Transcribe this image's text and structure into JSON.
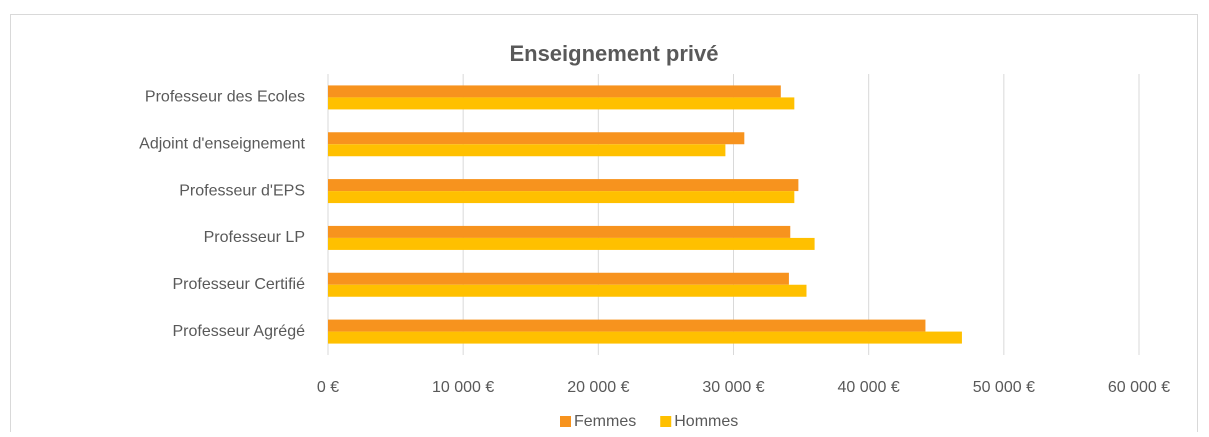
{
  "chart_data": {
    "type": "hbar",
    "title": "Enseignement privé",
    "categories": [
      "Professeur des Ecoles",
      "Adjoint d'enseignement",
      "Professeur d'EPS",
      "Professeur LP",
      "Professeur Certifié",
      "Professeur Agrégé"
    ],
    "series": [
      {
        "name": "Femmes",
        "color": "#f7931e",
        "values": [
          33500,
          30800,
          34800,
          34200,
          34100,
          44200
        ]
      },
      {
        "name": "Hommes",
        "color": "#ffc000",
        "values": [
          34500,
          29400,
          34500,
          36000,
          35400,
          46900
        ]
      }
    ],
    "xlim": [
      0,
      60000
    ],
    "xticks": [
      {
        "value": 0,
        "label": "0 €"
      },
      {
        "value": 10000,
        "label": "10 000 €"
      },
      {
        "value": 20000,
        "label": "20 000 €"
      },
      {
        "value": 30000,
        "label": "30 000 €"
      },
      {
        "value": 40000,
        "label": "40 000 €"
      },
      {
        "value": 50000,
        "label": "50 000 €"
      },
      {
        "value": 60000,
        "label": "60 000 €"
      }
    ],
    "grid": true,
    "legend": "bottom"
  }
}
